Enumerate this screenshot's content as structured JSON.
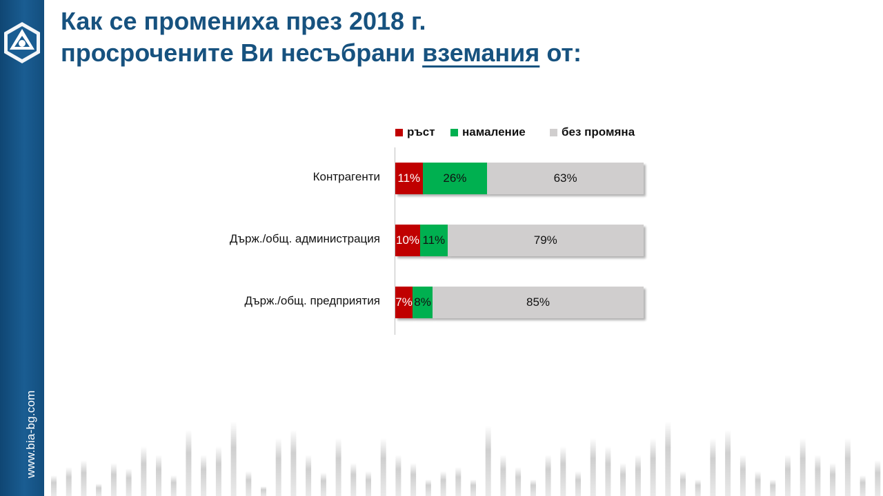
{
  "sidebar": {
    "logo_icon": "bia-logo-icon",
    "url": "www.bia-bg.com"
  },
  "title": {
    "line1": "Как се промениха през 2018 г.",
    "line2_prefix": "просрочените Ви несъбрани ",
    "line2_underlined": "вземания",
    "line2_suffix": " от:"
  },
  "chart_data": {
    "type": "bar",
    "orientation": "horizontal",
    "stacked": true,
    "categories": [
      "Контрагенти",
      "Държ./общ. администрация",
      "Държ./общ. предприятия"
    ],
    "series": [
      {
        "name": "ръст",
        "color": "#c00000",
        "label_color": "#ffffff",
        "values": [
          11,
          10,
          7
        ],
        "labels": [
          "11%",
          "10%",
          "7%"
        ]
      },
      {
        "name": "намаление",
        "color": "#00b050",
        "label_color": "#111111",
        "values": [
          26,
          11,
          8
        ],
        "labels": [
          "26%",
          "11%",
          "8%"
        ]
      },
      {
        "name": "без промяна",
        "color": "#d0cece",
        "label_color": "#111111",
        "values": [
          63,
          79,
          85
        ],
        "labels": [
          "63%",
          "79%",
          "85%"
        ]
      }
    ],
    "xlim": [
      0,
      100
    ],
    "legend_position": "top",
    "grid": false
  }
}
